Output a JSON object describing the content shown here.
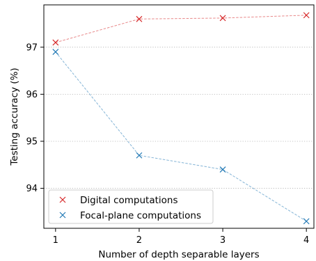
{
  "chart_data": {
    "type": "line",
    "title": "",
    "xlabel": "Number of depth separable layers",
    "ylabel": "Testing accuracy (%)",
    "x": [
      1,
      2,
      3,
      4
    ],
    "xlim": [
      0.86,
      4.09
    ],
    "ylim": [
      93.15,
      97.9
    ],
    "xticks": [
      "1",
      "2",
      "3",
      "4"
    ],
    "yticks": [
      "94",
      "95",
      "96",
      "97"
    ],
    "grid": "horizontal dotted",
    "legend_position": "lower-left",
    "series": [
      {
        "name": "Digital computations",
        "values": [
          97.1,
          97.6,
          97.62,
          97.68
        ],
        "color": "#d62728",
        "marker": "x",
        "linestyle": "dashed"
      },
      {
        "name": "Focal-plane computations",
        "values": [
          96.9,
          94.7,
          94.4,
          93.3
        ],
        "color": "#1f77b4",
        "marker": "x",
        "linestyle": "dashed"
      }
    ]
  }
}
